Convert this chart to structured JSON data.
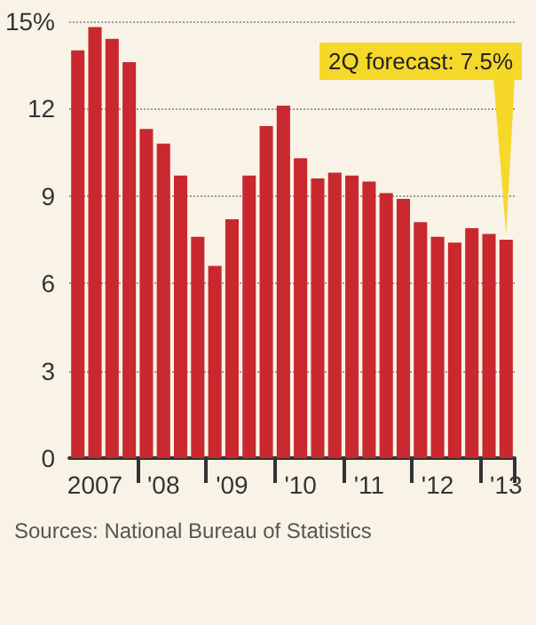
{
  "chart_data": {
    "type": "bar",
    "categories": [
      null,
      "2007",
      null,
      null,
      null,
      "'08",
      null,
      null,
      null,
      "'09",
      null,
      null,
      null,
      "'10",
      null,
      null,
      null,
      "'11",
      null,
      null,
      null,
      "'12",
      null,
      null,
      null,
      "'13"
    ],
    "values": [
      14.0,
      14.8,
      14.4,
      13.6,
      11.3,
      10.8,
      9.7,
      7.6,
      6.6,
      8.2,
      9.7,
      11.4,
      12.1,
      10.3,
      9.6,
      9.8,
      9.7,
      9.5,
      9.1,
      8.9,
      8.1,
      7.6,
      7.4,
      7.9,
      7.7,
      7.5
    ],
    "color": "#c8282e",
    "ylim": [
      0,
      15
    ],
    "yticks": [
      0,
      3,
      6,
      9,
      12,
      {
        "value": 15,
        "label": "15%"
      }
    ],
    "grid": "y",
    "annotations": [
      "2Q forecast: 7.5%",
      "Sources: National Bureau of Statistics"
    ]
  }
}
